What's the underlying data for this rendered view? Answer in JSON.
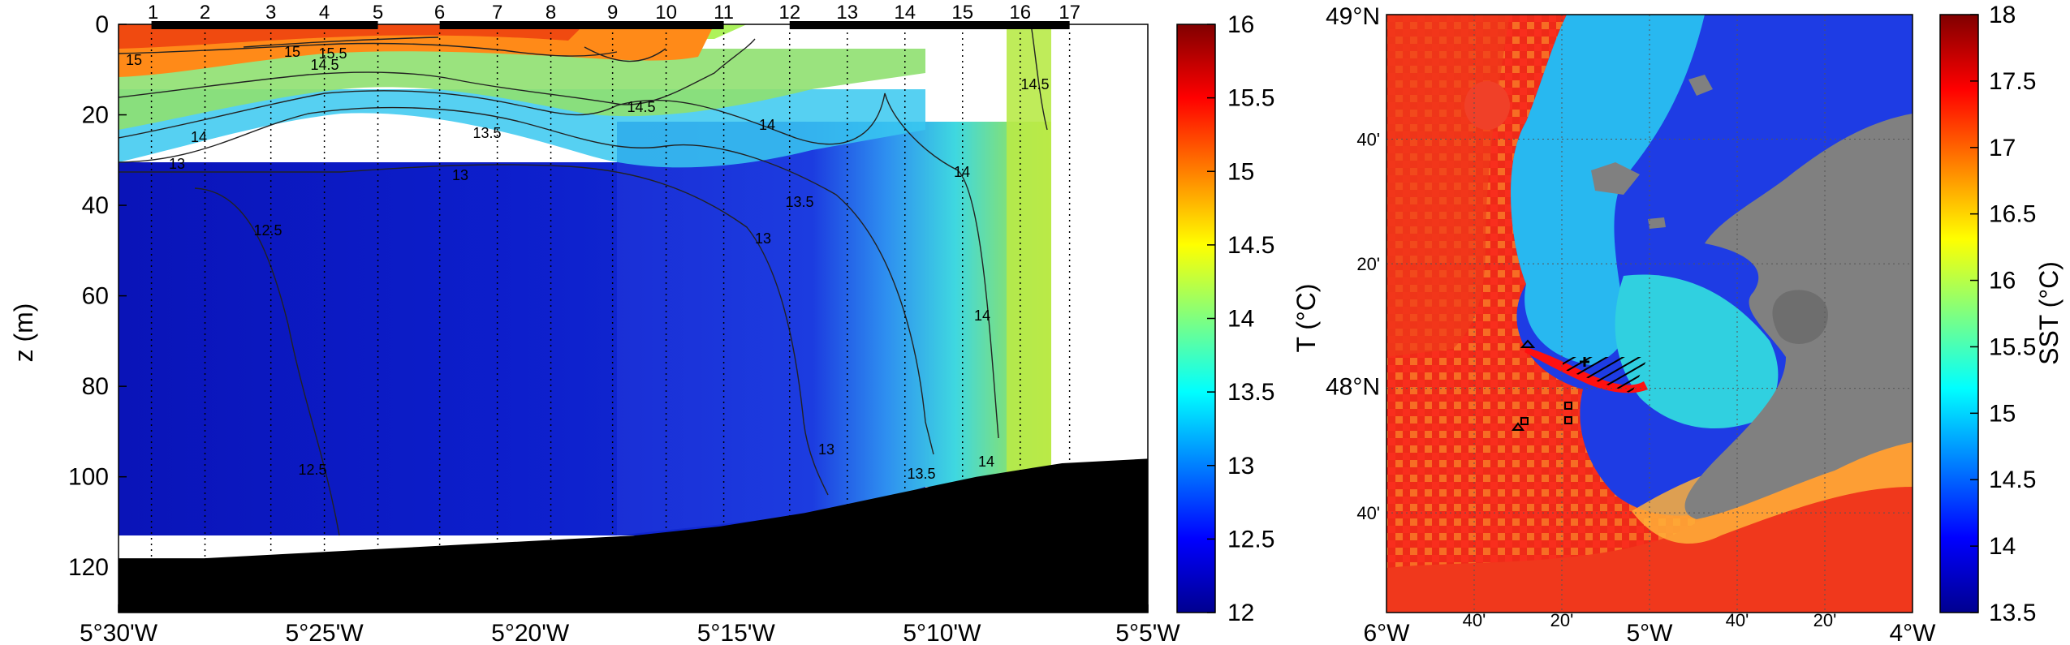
{
  "chart_data": [
    {
      "type": "heatmap",
      "description_role": "section",
      "ylabel": "z (m)",
      "yticks": [
        "0",
        "20",
        "40",
        "60",
        "80",
        "100",
        "120"
      ],
      "ylim": [
        130,
        0
      ],
      "xticks": [
        "5°30'W",
        "5°25'W",
        "5°20'W",
        "5°15'W",
        "5°10'W",
        "5°5'W"
      ],
      "xlim_minutes_west": [
        330,
        305
      ],
      "station_labels": [
        "1",
        "2",
        "3",
        "4",
        "5",
        "6",
        "7",
        "8",
        "9",
        "10",
        "11",
        "12",
        "13",
        "14",
        "15",
        "16",
        "17"
      ],
      "station_lon_minutes_west": [
        329.2,
        327.9,
        326.3,
        325.0,
        323.7,
        322.2,
        320.8,
        319.5,
        318.0,
        316.7,
        315.3,
        313.7,
        312.3,
        310.9,
        309.5,
        308.1,
        306.9
      ],
      "contour_labels": [
        "15.5",
        "15",
        "14.5",
        "15",
        "14",
        "14.5",
        "14",
        "13.5",
        "13",
        "13",
        "14",
        "13.5",
        "12.5",
        "13",
        "14",
        "13.5",
        "12.5",
        "13",
        "14",
        "14.5"
      ],
      "seafloor_depth_m": [
        118,
        118,
        117,
        116,
        115,
        114,
        113,
        111,
        108,
        104,
        100,
        97,
        96
      ],
      "colorbar": {
        "label": "T (°C)",
        "ticks": [
          "12",
          "12.5",
          "13",
          "13.5",
          "14",
          "14.5",
          "15",
          "15.5",
          "16"
        ],
        "range": [
          12,
          16
        ]
      }
    },
    {
      "type": "heatmap",
      "description_role": "map",
      "ylabels": [
        "49°N",
        "40'",
        "20'",
        "48°N",
        "40'"
      ],
      "xlabels": [
        "6°W",
        "40'",
        "20'",
        "5°W",
        "40'",
        "20'",
        "4°W"
      ],
      "colorbar": {
        "label": "SST (°C)",
        "ticks": [
          "13.5",
          "14",
          "14.5",
          "15",
          "15.5",
          "16",
          "16.5",
          "17",
          "17.5",
          "18"
        ],
        "range": [
          13.5,
          18
        ]
      }
    }
  ]
}
